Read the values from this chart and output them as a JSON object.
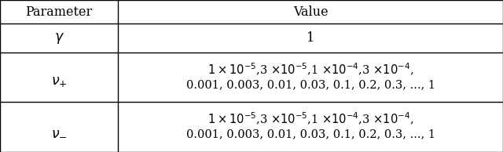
{
  "col_split": 0.235,
  "background": "#ffffff",
  "border_color": "#000000",
  "lw": 1.0,
  "font_size": 10.5,
  "row_tops": [
    1.0,
    0.845,
    0.655,
    0.33
  ],
  "row_bottoms": [
    0.845,
    0.655,
    0.33,
    0.0
  ],
  "header_param": "Parameter",
  "header_value": "Value",
  "gamma_param": "$\\gamma$",
  "gamma_value": "1",
  "nu_plus_param": "$\\nu_{+}$",
  "nu_minus_param": "$\\nu_{-}$",
  "nu_value_line1": "$1 \\times 10^{-5}$,3 $\\times 10^{-5}$,1 $\\times 10^{-4}$,3 $\\times 10^{-4}$,",
  "nu_value_line2": "0.001, 0.003, 0.01, 0.03, 0.1, 0.2, 0.3, ..., 1"
}
